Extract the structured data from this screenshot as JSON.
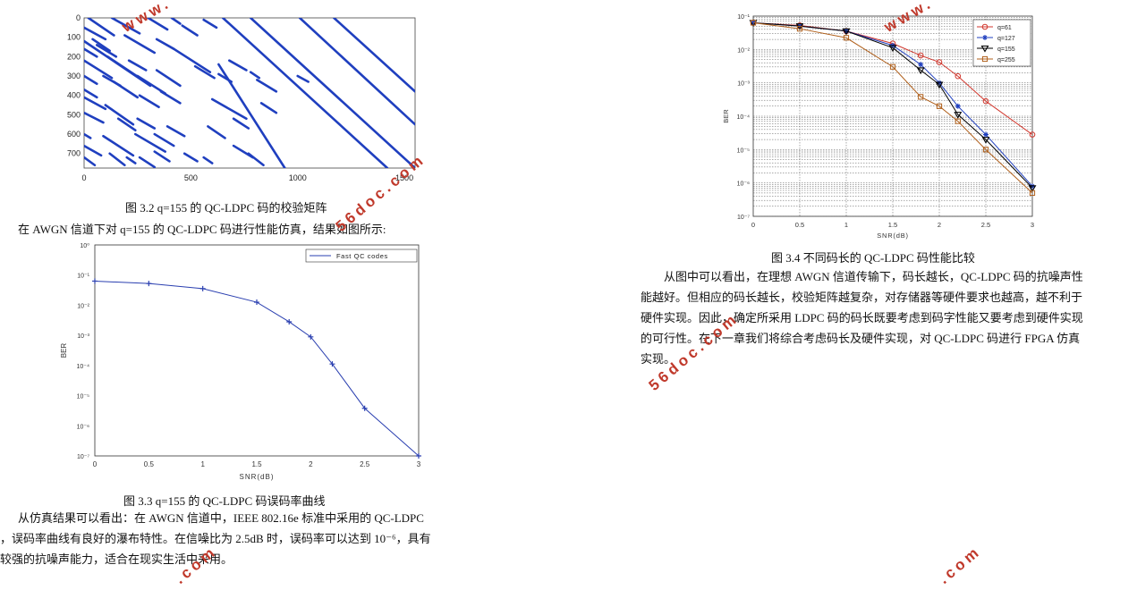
{
  "fig32": {
    "caption": "图 3.2 q=155 的 QC-LDPC 码的校验矩阵",
    "chart_data": {
      "type": "scatter",
      "title": "",
      "xlabel": "",
      "ylabel": "",
      "x_ticks": [
        "0",
        "500",
        "1000",
        "1500"
      ],
      "y_ticks": [
        "0",
        "100",
        "200",
        "300",
        "400",
        "500",
        "600",
        "700"
      ],
      "xlim": [
        0,
        1550
      ],
      "ylim": [
        775,
        0
      ],
      "color": "#1f3fbf",
      "diagonal_segments": [
        [
          0,
          50,
          100,
          110
        ],
        [
          0,
          160,
          60,
          200
        ],
        [
          0,
          220,
          130,
          310
        ],
        [
          0,
          300,
          60,
          340
        ],
        [
          0,
          370,
          60,
          410
        ],
        [
          0,
          410,
          100,
          470
        ],
        [
          0,
          490,
          90,
          540
        ],
        [
          0,
          600,
          30,
          620
        ],
        [
          0,
          660,
          80,
          710
        ],
        [
          0,
          720,
          50,
          760
        ],
        [
          20,
          0,
          140,
          90
        ],
        [
          40,
          110,
          120,
          170
        ],
        [
          60,
          140,
          150,
          200
        ],
        [
          110,
          200,
          260,
          310
        ],
        [
          90,
          300,
          170,
          350
        ],
        [
          140,
          330,
          250,
          410
        ],
        [
          100,
          450,
          230,
          550
        ],
        [
          160,
          520,
          240,
          580
        ],
        [
          90,
          610,
          230,
          710
        ],
        [
          120,
          700,
          190,
          760
        ],
        [
          130,
          0,
          260,
          80
        ],
        [
          190,
          90,
          330,
          180
        ],
        [
          210,
          220,
          290,
          270
        ],
        [
          250,
          300,
          380,
          390
        ],
        [
          260,
          400,
          350,
          460
        ],
        [
          250,
          520,
          330,
          570
        ],
        [
          240,
          600,
          380,
          690
        ],
        [
          200,
          720,
          240,
          750
        ],
        [
          260,
          720,
          330,
          770
        ],
        [
          300,
          0,
          390,
          60
        ],
        [
          340,
          110,
          420,
          160
        ],
        [
          340,
          270,
          450,
          350
        ],
        [
          360,
          380,
          450,
          440
        ],
        [
          390,
          560,
          470,
          610
        ],
        [
          330,
          600,
          420,
          660
        ],
        [
          330,
          690,
          400,
          740
        ],
        [
          410,
          0,
          450,
          30
        ],
        [
          460,
          40,
          530,
          90
        ],
        [
          420,
          160,
          590,
          280
        ],
        [
          520,
          250,
          610,
          310
        ],
        [
          630,
          290,
          690,
          330
        ],
        [
          600,
          420,
          760,
          520
        ],
        [
          580,
          560,
          660,
          620
        ],
        [
          470,
          700,
          530,
          740
        ],
        [
          560,
          720,
          600,
          750
        ],
        [
          700,
          660,
          790,
          720
        ],
        [
          770,
          700,
          840,
          760
        ],
        [
          700,
          520,
          770,
          570
        ],
        [
          680,
          220,
          760,
          270
        ],
        [
          780,
          280,
          820,
          310
        ],
        [
          810,
          320,
          900,
          380
        ],
        [
          830,
          440,
          900,
          490
        ],
        [
          1000,
          300,
          1050,
          330
        ],
        [
          560,
          10,
          620,
          50
        ]
      ],
      "long_diagonals": [
        [
          650,
          0,
          1420,
          775
        ],
        [
          780,
          0,
          1550,
          775
        ],
        [
          1010,
          0,
          1550,
          550
        ],
        [
          1170,
          0,
          1550,
          380
        ],
        [
          630,
          240,
          940,
          775
        ],
        [
          0,
          120,
          310,
          350
        ]
      ]
    }
  },
  "intro_text": "在 AWGN 信道下对 q=155 的 QC-LDPC 码进行性能仿真，结果如图所示:",
  "fig33": {
    "caption": "图 3.3 q=155 的 QC-LDPC 码误码率曲线",
    "chart_data": {
      "type": "line",
      "title": "",
      "xlabel": "SNR(dB)",
      "ylabel": "BER",
      "x_ticks": [
        "0",
        "0.5",
        "1",
        "1.5",
        "2",
        "2.5",
        "3"
      ],
      "y_ticks": [
        "10⁰",
        "10⁻¹",
        "10⁻²",
        "10⁻³",
        "10⁻⁴",
        "10⁻⁵",
        "10⁻⁶",
        "10⁻⁷"
      ],
      "xlim": [
        0,
        3
      ],
      "ylim_log10": [
        -7,
        0
      ],
      "log_y": true,
      "grid": false,
      "legend_position": "top-right",
      "color": "#2a3fb0",
      "series": [
        {
          "name": "Fast QC codes",
          "x": [
            0,
            0.5,
            1,
            1.5,
            1.8,
            2.0,
            2.2,
            2.5,
            3.0
          ],
          "y_log10": [
            -1.2,
            -1.28,
            -1.45,
            -1.9,
            -2.55,
            -3.05,
            -3.95,
            -5.42,
            -7.0
          ]
        }
      ]
    }
  },
  "conclusion_left": {
    "lines": [
      "从仿真结果可以看出：在   AWGN  信道中，IEEE 802.16e 标准中采用的 QC-LDPC",
      "，误码率曲线有良好的瀑布特性。在信噪比为  2.5dB 时，误码率可以达到 10⁻⁶，具有",
      "较强的抗噪声能力，适合在现实生活中采用。"
    ]
  },
  "fig34": {
    "caption": "图 3.4  不同码长的 QC-LDPC 码性能比较",
    "chart_data": {
      "type": "line",
      "title": "",
      "xlabel": "SNR(dB)",
      "ylabel": "BER",
      "x_ticks": [
        "0",
        "0.5",
        "1",
        "1.5",
        "2",
        "2.5",
        "3"
      ],
      "y_ticks": [
        "10⁻¹",
        "10⁻²",
        "10⁻³",
        "10⁻⁴",
        "10⁻⁵",
        "10⁻⁶",
        "10⁻⁷"
      ],
      "xlim": [
        0,
        3
      ],
      "ylim_log10": [
        -7,
        -1
      ],
      "log_y": true,
      "grid": true,
      "legend_position": "top-right",
      "series": [
        {
          "name": "q=61",
          "color": "#d0362c",
          "marker": "circle",
          "x": [
            0,
            0.5,
            1,
            1.5,
            1.8,
            2.0,
            2.2,
            2.5,
            3.0
          ],
          "y_log10": [
            -1.2,
            -1.28,
            -1.45,
            -1.82,
            -2.18,
            -2.38,
            -2.8,
            -3.55,
            -4.55
          ]
        },
        {
          "name": "q=127",
          "color": "#1f3fbf",
          "marker": "star",
          "x": [
            0,
            0.5,
            1,
            1.5,
            1.8,
            2.0,
            2.2,
            2.5,
            3.0
          ],
          "y_log10": [
            -1.2,
            -1.3,
            -1.45,
            -1.88,
            -2.45,
            -3.0,
            -3.7,
            -4.55,
            -6.1
          ]
        },
        {
          "name": "q=155",
          "color": "#000000",
          "marker": "triangle-down",
          "x": [
            0,
            0.5,
            1,
            1.5,
            1.8,
            2.0,
            2.2,
            2.5,
            3.0
          ],
          "y_log10": [
            -1.2,
            -1.3,
            -1.45,
            -1.95,
            -2.62,
            -3.05,
            -3.95,
            -4.7,
            -6.15
          ]
        },
        {
          "name": "q=255",
          "color": "#b0601c",
          "marker": "square",
          "x": [
            0,
            0.5,
            1,
            1.5,
            1.8,
            2.0,
            2.2,
            2.5,
            3.0
          ],
          "y_log10": [
            -1.2,
            -1.38,
            -1.65,
            -2.52,
            -3.42,
            -3.7,
            -4.15,
            -5.0,
            -6.3
          ]
        }
      ]
    }
  },
  "conclusion_right": {
    "lines": [
      "从图中可以看出，在理想 AWGN 信道传输下，码长越长，QC-LDPC 码的抗噪声性",
      "能越好。但相应的码长越长，校验矩阵越复杂，对存储器等硬件要求也越高，越不利于",
      "硬件实现。因此，确定所采用 LDPC 码的码长既要考虑到码字性能又要考虑到硬件实现",
      "的可行性。在下一章我们将综合考虑码长及硬件实现，对 QC-LDPC 码进行 FPGA 仿真",
      "实现。"
    ]
  },
  "watermark": {
    "text_www": "www.",
    "text_domain": "56doc.com",
    "text_com": ".com",
    "color": "#c0392b"
  }
}
